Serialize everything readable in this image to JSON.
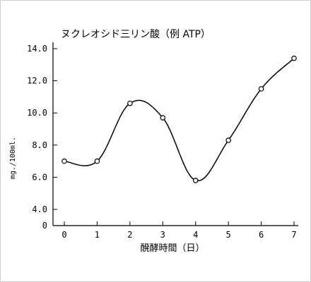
{
  "chart_data": {
    "type": "line",
    "title": "ヌクレオシド三リン酸（例 ATP）",
    "xlabel": "醗酵時間（日）",
    "ylabel": "mg./100ml.",
    "x": [
      0,
      1,
      2,
      3,
      4,
      5,
      6,
      7
    ],
    "x_tick_labels": [
      "0",
      "1",
      "2",
      "3",
      "4",
      "5",
      "6",
      "7"
    ],
    "y_tick_values": [
      0,
      4.0,
      6.0,
      8.0,
      10.0,
      12.0,
      14.0
    ],
    "y_tick_labels": [
      "0",
      "4.0",
      "6.0",
      "8.0",
      "10.0",
      "12.0",
      "14.0"
    ],
    "series": [
      {
        "values": [
          7.0,
          7.0,
          10.6,
          9.7,
          5.8,
          8.3,
          11.5,
          13.4
        ]
      }
    ],
    "xlim": [
      0,
      7
    ],
    "y_axis_break": true,
    "grid": false,
    "smooth_line": true,
    "marker": "open-circle",
    "line_color": "#000000"
  }
}
